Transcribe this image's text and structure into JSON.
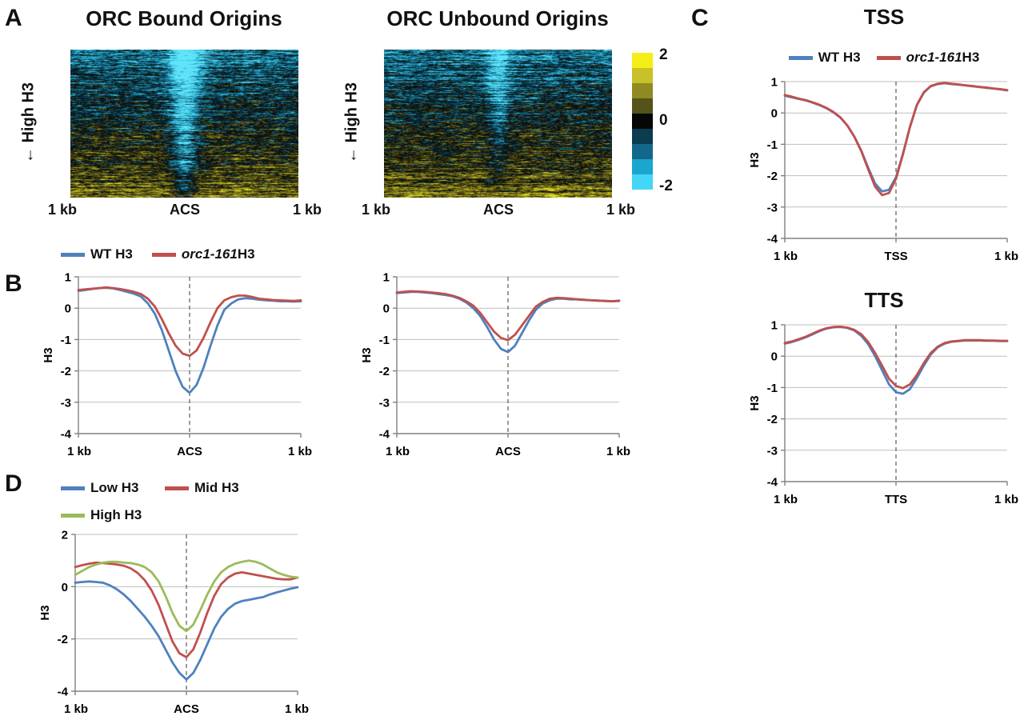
{
  "figure": {
    "panel_a": {
      "label": "A",
      "side_label": "← High H3",
      "heatmaps": [
        {
          "title": "ORC Bound Origins",
          "x_ticks": [
            "1 kb",
            "ACS",
            "1 kb"
          ]
        },
        {
          "title": "ORC Unbound Origins",
          "x_ticks": [
            "1 kb",
            "ACS",
            "1 kb"
          ]
        }
      ],
      "colorbar": {
        "tick_labels": [
          "2",
          "0",
          "-2"
        ],
        "colors": [
          "#f4ee18",
          "#c8c128",
          "#8f8a22",
          "#55521a",
          "#060606",
          "#0b3c50",
          "#13678a",
          "#1ba6cf",
          "#43d6f6"
        ]
      }
    },
    "panel_b": {
      "label": "B",
      "legend": [
        {
          "label": "WT H3",
          "color": "#4F81BD"
        },
        {
          "label_em": "orc1-161",
          "label_rest": " H3",
          "color": "#C0504D"
        }
      ]
    },
    "panel_c": {
      "label": "C",
      "legend": [
        {
          "label": "WT H3",
          "color": "#4F81BD"
        },
        {
          "label_em": "orc1-161",
          "label_rest": " H3",
          "color": "#C0504D"
        }
      ]
    },
    "panel_d": {
      "label": "D",
      "legend": [
        {
          "label": "Low H3",
          "color": "#4F81BD"
        },
        {
          "label": "Mid H3",
          "color": "#C0504D"
        },
        {
          "label": "High H3",
          "color": "#9BBB59"
        }
      ]
    }
  },
  "chart_data": [
    {
      "type": "line",
      "title": "",
      "ylabel": "H3",
      "x_ticks": [
        "1 kb",
        "ACS",
        "1 kb"
      ],
      "ylim": [
        -4,
        1
      ],
      "yticks": [
        1,
        0,
        -1,
        -2,
        -3,
        -4
      ],
      "center_line": true,
      "series": [
        {
          "name": "WT H3",
          "color": "#4F81BD",
          "values": [
            0.55,
            0.58,
            0.61,
            0.64,
            0.65,
            0.63,
            0.58,
            0.52,
            0.46,
            0.37,
            0.15,
            -0.18,
            -0.7,
            -1.35,
            -2.01,
            -2.51,
            -2.7,
            -2.45,
            -1.9,
            -1.2,
            -0.55,
            -0.05,
            0.15,
            0.28,
            0.32,
            0.3,
            0.27,
            0.25,
            0.24,
            0.22,
            0.22,
            0.21,
            0.22
          ]
        },
        {
          "name": "orc1-161 H3",
          "color": "#C0504D",
          "values": [
            0.58,
            0.6,
            0.62,
            0.64,
            0.66,
            0.64,
            0.61,
            0.57,
            0.52,
            0.45,
            0.3,
            0.05,
            -0.35,
            -0.8,
            -1.2,
            -1.45,
            -1.52,
            -1.35,
            -0.95,
            -0.45,
            0.0,
            0.25,
            0.35,
            0.4,
            0.4,
            0.36,
            0.3,
            0.28,
            0.26,
            0.25,
            0.24,
            0.23,
            0.25
          ]
        }
      ]
    },
    {
      "type": "line",
      "title": "",
      "ylabel": "H3",
      "x_ticks": [
        "1 kb",
        "ACS",
        "1 kb"
      ],
      "ylim": [
        -4,
        1
      ],
      "yticks": [
        1,
        0,
        -1,
        -2,
        -3,
        -4
      ],
      "center_line": true,
      "series": [
        {
          "name": "WT H3",
          "color": "#4F81BD",
          "values": [
            0.48,
            0.5,
            0.52,
            0.52,
            0.5,
            0.48,
            0.45,
            0.42,
            0.38,
            0.3,
            0.18,
            0.0,
            -0.25,
            -0.6,
            -1.0,
            -1.3,
            -1.4,
            -1.2,
            -0.8,
            -0.4,
            -0.05,
            0.15,
            0.25,
            0.3,
            0.3,
            0.28,
            0.28,
            0.27,
            0.25,
            0.24,
            0.23,
            0.22,
            0.23
          ]
        },
        {
          "name": "orc1-161 H3",
          "color": "#C0504D",
          "values": [
            0.5,
            0.52,
            0.54,
            0.53,
            0.52,
            0.5,
            0.48,
            0.45,
            0.4,
            0.33,
            0.22,
            0.08,
            -0.15,
            -0.45,
            -0.75,
            -0.95,
            -1.02,
            -0.85,
            -0.55,
            -0.25,
            0.05,
            0.2,
            0.3,
            0.33,
            0.32,
            0.3,
            0.28,
            0.26,
            0.25,
            0.24,
            0.23,
            0.22,
            0.24
          ]
        }
      ]
    },
    {
      "type": "line",
      "title": "TSS",
      "ylabel": "H3",
      "x_ticks": [
        "1 kb",
        "TSS",
        "1 kb"
      ],
      "ylim": [
        -4,
        1
      ],
      "yticks": [
        1,
        0,
        -1,
        -2,
        -3,
        -4
      ],
      "center_line": true,
      "series": [
        {
          "name": "WT H3",
          "color": "#4F81BD",
          "values": [
            0.55,
            0.5,
            0.45,
            0.4,
            0.33,
            0.25,
            0.15,
            0.02,
            -0.15,
            -0.4,
            -0.75,
            -1.2,
            -1.75,
            -2.25,
            -2.5,
            -2.45,
            -2.05,
            -1.3,
            -0.45,
            0.25,
            0.65,
            0.85,
            0.92,
            0.95,
            0.92,
            0.9,
            0.88,
            0.85,
            0.83,
            0.8,
            0.78,
            0.75,
            0.72
          ]
        },
        {
          "name": "orc1-161 H3",
          "color": "#C0504D",
          "values": [
            0.57,
            0.52,
            0.46,
            0.41,
            0.34,
            0.26,
            0.16,
            0.03,
            -0.14,
            -0.4,
            -0.76,
            -1.22,
            -1.8,
            -2.35,
            -2.62,
            -2.55,
            -2.1,
            -1.32,
            -0.45,
            0.26,
            0.66,
            0.86,
            0.93,
            0.96,
            0.93,
            0.91,
            0.88,
            0.86,
            0.83,
            0.81,
            0.78,
            0.76,
            0.73
          ]
        }
      ]
    },
    {
      "type": "line",
      "title": "TTS",
      "ylabel": "H3",
      "x_ticks": [
        "1 kb",
        "TTS",
        "1 kb"
      ],
      "ylim": [
        -4,
        1
      ],
      "yticks": [
        1,
        0,
        -1,
        -2,
        -3,
        -4
      ],
      "center_line": true,
      "series": [
        {
          "name": "WT H3",
          "color": "#4F81BD",
          "values": [
            0.4,
            0.45,
            0.52,
            0.6,
            0.7,
            0.8,
            0.88,
            0.92,
            0.93,
            0.9,
            0.82,
            0.65,
            0.38,
            0.0,
            -0.45,
            -0.9,
            -1.15,
            -1.2,
            -1.05,
            -0.7,
            -0.3,
            0.05,
            0.28,
            0.4,
            0.46,
            0.48,
            0.5,
            0.5,
            0.5,
            0.49,
            0.49,
            0.48,
            0.48
          ]
        },
        {
          "name": "orc1-161 H3",
          "color": "#C0504D",
          "values": [
            0.42,
            0.47,
            0.54,
            0.62,
            0.72,
            0.82,
            0.89,
            0.93,
            0.94,
            0.91,
            0.84,
            0.7,
            0.45,
            0.1,
            -0.3,
            -0.72,
            -0.95,
            -1.02,
            -0.9,
            -0.6,
            -0.22,
            0.1,
            0.3,
            0.42,
            0.47,
            0.49,
            0.51,
            0.51,
            0.51,
            0.5,
            0.5,
            0.49,
            0.49
          ]
        }
      ]
    },
    {
      "type": "line",
      "title": "",
      "ylabel": "H3",
      "x_ticks": [
        "1 kb",
        "ACS",
        "1 kb"
      ],
      "ylim": [
        -4,
        2
      ],
      "yticks": [
        2,
        0,
        -2,
        -4
      ],
      "center_line": true,
      "series": [
        {
          "name": "Low H3",
          "color": "#4F81BD",
          "values": [
            0.15,
            0.18,
            0.2,
            0.18,
            0.15,
            0.05,
            -0.1,
            -0.3,
            -0.55,
            -0.85,
            -1.15,
            -1.5,
            -1.9,
            -2.4,
            -2.9,
            -3.3,
            -3.55,
            -3.3,
            -2.8,
            -2.2,
            -1.6,
            -1.15,
            -0.85,
            -0.65,
            -0.55,
            -0.5,
            -0.45,
            -0.4,
            -0.3,
            -0.22,
            -0.15,
            -0.08,
            -0.02
          ]
        },
        {
          "name": "Mid H3",
          "color": "#C0504D",
          "values": [
            0.75,
            0.82,
            0.88,
            0.92,
            0.9,
            0.88,
            0.85,
            0.8,
            0.7,
            0.52,
            0.25,
            -0.15,
            -0.7,
            -1.4,
            -2.1,
            -2.55,
            -2.7,
            -2.4,
            -1.75,
            -1.0,
            -0.35,
            0.1,
            0.35,
            0.5,
            0.55,
            0.5,
            0.45,
            0.4,
            0.35,
            0.3,
            0.28,
            0.28,
            0.35
          ]
        },
        {
          "name": "High H3",
          "color": "#9BBB59",
          "values": [
            0.45,
            0.6,
            0.75,
            0.85,
            0.92,
            0.95,
            0.95,
            0.92,
            0.9,
            0.85,
            0.75,
            0.55,
            0.2,
            -0.35,
            -1.0,
            -1.5,
            -1.7,
            -1.45,
            -0.9,
            -0.3,
            0.2,
            0.55,
            0.75,
            0.88,
            0.95,
            1.0,
            0.95,
            0.85,
            0.7,
            0.55,
            0.45,
            0.38,
            0.35
          ]
        }
      ]
    }
  ]
}
